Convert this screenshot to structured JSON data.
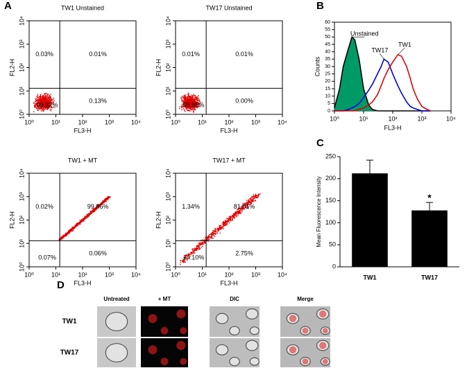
{
  "panel_labels": [
    "A",
    "B",
    "C",
    "D"
  ],
  "chart_data": [
    {
      "type": "scatter",
      "title": "TW1 Unstained",
      "xlabel": "FL3-H",
      "ylabel": "FL2-H",
      "xlog": true,
      "ylog": true,
      "xlim": [
        1,
        10000
      ],
      "ylim": [
        1,
        10000
      ],
      "xticks": [
        {
          "value": 1,
          "label": "10⁰"
        },
        {
          "value": 10,
          "label": "10¹"
        },
        {
          "value": 100,
          "label": "10²"
        },
        {
          "value": 1000,
          "label": "10³"
        },
        {
          "value": 10000,
          "label": "10⁴"
        }
      ],
      "yticks": [
        {
          "value": 1,
          "label": "10⁰"
        },
        {
          "value": 10,
          "label": "10¹"
        },
        {
          "value": 100,
          "label": "10²"
        },
        {
          "value": 1000,
          "label": "10³"
        },
        {
          "value": 10000,
          "label": "10⁴"
        }
      ],
      "color": "#e00000",
      "quadrant": [
        14,
        13
      ],
      "quadrant_labels": [
        "0.03%",
        "0.01%",
        "99.82%",
        "0.13%"
      ]
    },
    {
      "type": "scatter",
      "title": "TW17 Unstained",
      "xlabel": "FL3-H",
      "ylabel": "FL2-H",
      "xlog": true,
      "ylog": true,
      "xlim": [
        1,
        10000
      ],
      "ylim": [
        1,
        10000
      ],
      "xticks": [
        {
          "value": 1,
          "label": "10⁰"
        },
        {
          "value": 10,
          "label": "10¹"
        },
        {
          "value": 100,
          "label": "10²"
        },
        {
          "value": 1000,
          "label": "10³"
        },
        {
          "value": 10000,
          "label": "10⁴"
        }
      ],
      "yticks": [
        {
          "value": 1,
          "label": "10⁰"
        },
        {
          "value": 10,
          "label": "10¹"
        },
        {
          "value": 100,
          "label": "10²"
        },
        {
          "value": 1000,
          "label": "10³"
        },
        {
          "value": 10000,
          "label": "10⁴"
        }
      ],
      "color": "#e00000",
      "quadrant": [
        14,
        13
      ],
      "quadrant_labels": [
        "0.01%",
        "0.01%",
        "99.98%",
        "0.00%"
      ]
    },
    {
      "type": "scatter",
      "title": "TW1 + MT",
      "xlabel": "FL3-H",
      "ylabel": "FL2-H",
      "xlog": true,
      "ylog": true,
      "xlim": [
        1,
        10000
      ],
      "ylim": [
        1,
        10000
      ],
      "xticks": [
        {
          "value": 1,
          "label": "10⁰"
        },
        {
          "value": 10,
          "label": "10¹"
        },
        {
          "value": 100,
          "label": "10²"
        },
        {
          "value": 1000,
          "label": "10³"
        },
        {
          "value": 10000,
          "label": "10⁴"
        }
      ],
      "yticks": [
        {
          "value": 1,
          "label": "10⁰"
        },
        {
          "value": 10,
          "label": "10¹"
        },
        {
          "value": 100,
          "label": "10²"
        },
        {
          "value": 1000,
          "label": "10³"
        },
        {
          "value": 10000,
          "label": "10⁴"
        }
      ],
      "color": "#e00000",
      "quadrant": [
        14,
        13
      ],
      "quadrant_labels": [
        "0.02%",
        "99.86%",
        "0.07%",
        "0.06%"
      ]
    },
    {
      "type": "scatter",
      "title": "TW17 + MT",
      "xlabel": "FL3-H",
      "ylabel": "FL2-H",
      "xlog": true,
      "ylog": true,
      "xlim": [
        1,
        10000
      ],
      "ylim": [
        1,
        10000
      ],
      "xticks": [
        {
          "value": 1,
          "label": "10⁰"
        },
        {
          "value": 10,
          "label": "10¹"
        },
        {
          "value": 100,
          "label": "10²"
        },
        {
          "value": 1000,
          "label": "10³"
        },
        {
          "value": 10000,
          "label": "10⁴"
        }
      ],
      "yticks": [
        {
          "value": 1,
          "label": "10⁰"
        },
        {
          "value": 10,
          "label": "10¹"
        },
        {
          "value": 100,
          "label": "10²"
        },
        {
          "value": 1000,
          "label": "10³"
        },
        {
          "value": 10000,
          "label": "10⁴"
        }
      ],
      "color": "#e00000",
      "quadrant": [
        14,
        13
      ],
      "quadrant_labels": [
        "1.34%",
        "81.81%",
        "14.10%",
        "2.75%"
      ]
    },
    {
      "type": "line",
      "xlabel": "FL3-H",
      "ylabel": "Counts",
      "xlog": true,
      "xlim": [
        1,
        10000
      ],
      "ylim": [
        0,
        60
      ],
      "xticks": [
        {
          "value": 1,
          "label": "10⁰"
        },
        {
          "value": 10,
          "label": "10¹"
        },
        {
          "value": 100,
          "label": "10²"
        },
        {
          "value": 1000,
          "label": "10³"
        },
        {
          "value": 10000,
          "label": "10⁴"
        }
      ],
      "yticks": [
        0,
        5,
        10,
        15,
        20,
        25,
        30,
        35,
        40,
        45,
        50,
        55,
        60
      ],
      "x": [
        1,
        1.5,
        2,
        3,
        4,
        5,
        7,
        10,
        15,
        20,
        30,
        40,
        50,
        70,
        100,
        150,
        200,
        300,
        400,
        500,
        700,
        1000,
        1500,
        2000
      ],
      "series": [
        {
          "name": "Unstained",
          "color": "#000000",
          "fill_color": "#009a66",
          "values": [
            2,
            15,
            30,
            42,
            50,
            48,
            35,
            15,
            4,
            1,
            0,
            0,
            0,
            0,
            0,
            0,
            0,
            0,
            0,
            0,
            0,
            0,
            0,
            0
          ]
        },
        {
          "name": "TW17",
          "color": "#0000dd",
          "values": [
            0,
            0,
            0,
            1,
            2,
            3,
            5,
            9,
            14,
            18,
            25,
            30,
            35,
            33,
            25,
            17,
            12,
            6,
            3,
            2,
            1,
            0,
            0,
            0
          ]
        },
        {
          "name": "TW1",
          "color": "#dd0000",
          "values": [
            0,
            0,
            0,
            0,
            0,
            0,
            1,
            2,
            4,
            6,
            11,
            17,
            22,
            28,
            33,
            38,
            37,
            30,
            22,
            15,
            8,
            3,
            1,
            0
          ]
        }
      ]
    },
    {
      "type": "bar",
      "ylabel": "Mean Fluorescence Intensity",
      "categories": [
        "TW1",
        "TW17"
      ],
      "values": [
        212,
        128
      ],
      "errors": [
        30,
        18
      ],
      "color": "#000000",
      "value_annotations": [
        null,
        "*"
      ],
      "ylim": [
        0,
        250
      ],
      "yticks": [
        0,
        50,
        100,
        150,
        200,
        250
      ]
    }
  ],
  "microscopy": {
    "columns": [
      "Untreated",
      "+ MT",
      "DIC",
      "Merge"
    ],
    "rows": [
      "TW1",
      "TW17"
    ]
  }
}
